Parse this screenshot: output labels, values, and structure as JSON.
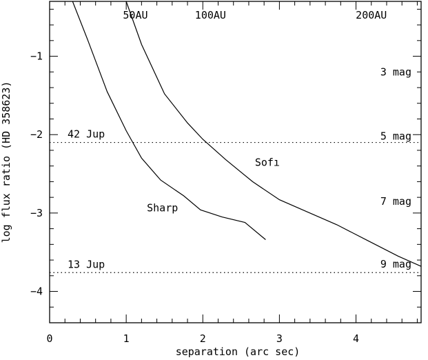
{
  "chart_data": {
    "type": "line",
    "xlabel": "separation (arc sec)",
    "ylabel": "log flux ratio (HD 358623)",
    "xlim": [
      0,
      4.85
    ],
    "ylim": [
      -4.4,
      -0.3
    ],
    "x_ticks": [
      0,
      1,
      2,
      3,
      4
    ],
    "y_ticks": [
      -1,
      -2,
      -3,
      -4
    ],
    "series": [
      {
        "name": "Sharp",
        "x": [
          0.3,
          0.5,
          0.75,
          1.0,
          1.2,
          1.45,
          1.75,
          1.97,
          2.25,
          2.55,
          2.82
        ],
        "y": [
          -0.3,
          -0.8,
          -1.45,
          -1.95,
          -2.3,
          -2.58,
          -2.78,
          -2.96,
          -3.05,
          -3.12,
          -3.34
        ]
      },
      {
        "name": "Sofi",
        "x": [
          1.0,
          1.2,
          1.5,
          1.8,
          2.0,
          2.3,
          2.65,
          3.0,
          3.35,
          3.75,
          4.15,
          4.55,
          4.85
        ],
        "y": [
          -0.3,
          -0.85,
          -1.48,
          -1.85,
          -2.06,
          -2.32,
          -2.6,
          -2.83,
          -2.98,
          -3.15,
          -3.35,
          -3.55,
          -3.68
        ]
      }
    ],
    "hlines": [
      {
        "label": "42 Jup",
        "y": -2.1
      },
      {
        "label": "13 Jup",
        "y": -3.76
      }
    ],
    "top_annotations": [
      {
        "label": "50AU",
        "x": 1.12
      },
      {
        "label": "100AU",
        "x": 2.1
      },
      {
        "label": "200AU",
        "x": 4.2
      }
    ],
    "right_annotations": [
      {
        "label": "3 mag",
        "y": -1.2
      },
      {
        "label": "5 mag",
        "y": -2.02
      },
      {
        "label": "7 mag",
        "y": -2.85
      },
      {
        "label": "9 mag",
        "y": -3.65
      }
    ],
    "curve_labels": [
      {
        "label": "Sharp",
        "x": 1.27,
        "y": -2.98
      },
      {
        "label": "Sofı",
        "x": 2.68,
        "y": -2.4
      }
    ]
  }
}
